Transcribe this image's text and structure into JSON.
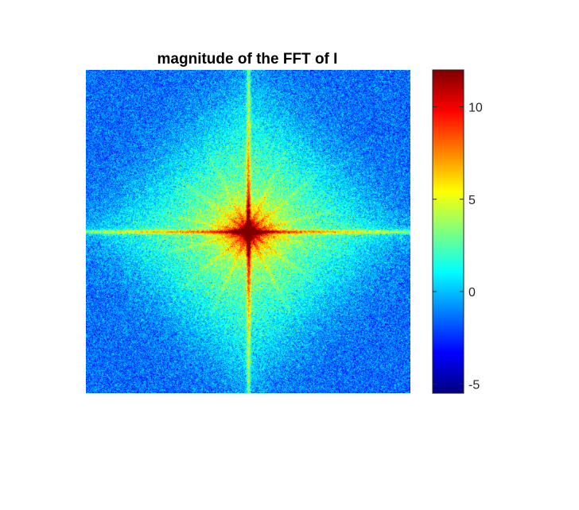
{
  "figure": {
    "title": "magnitude of the FFT of I"
  },
  "chart_data": {
    "type": "heatmap",
    "title": "magnitude of the FFT of I",
    "xlabel": "",
    "ylabel": "",
    "colormap": "jet",
    "axis_visible": false,
    "center_peak_value": 12,
    "background_value": -1.5,
    "colorbar": {
      "range": [
        -5.5,
        12
      ],
      "ticks": [
        -5,
        0,
        5,
        10
      ],
      "tick_labels": [
        "-5",
        "0",
        "5",
        "10"
      ]
    },
    "features": {
      "cross_axes": true,
      "radial_streaks": true,
      "diamond_spread": true
    }
  }
}
